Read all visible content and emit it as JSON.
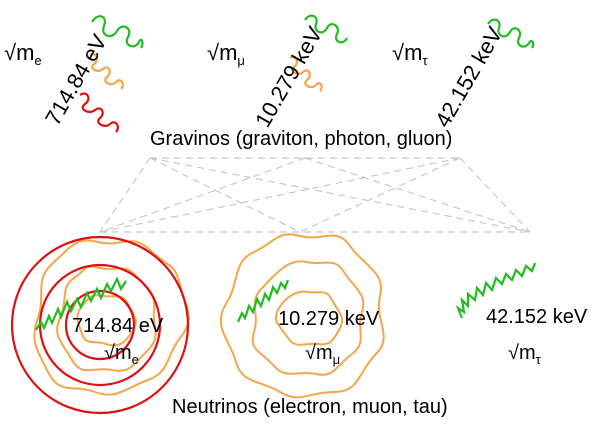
{
  "gravinos": {
    "caption": "Gravinos (graviton, photon, gluon)",
    "groups": [
      {
        "root": "√m",
        "sub": "e",
        "energy": "714.84 eV"
      },
      {
        "root": "√m",
        "sub": "μ",
        "energy": "10.279 keV"
      },
      {
        "root": "√m",
        "sub": "τ",
        "energy": "42.152 keV"
      }
    ]
  },
  "neutrinos": {
    "caption": "Neutrinos (electron, muon, tau)",
    "groups": [
      {
        "root": "√m",
        "sub": "e",
        "energy": "714.84 eV"
      },
      {
        "root": "√m",
        "sub": "μ",
        "energy": "10.279 keV"
      },
      {
        "root": "√m",
        "sub": "τ",
        "energy": "42.152 keV"
      }
    ]
  },
  "colors": {
    "green": "#22bb22",
    "orange": "#f5a54a",
    "red": "#dd1111",
    "dash": "#c8c8c8"
  }
}
